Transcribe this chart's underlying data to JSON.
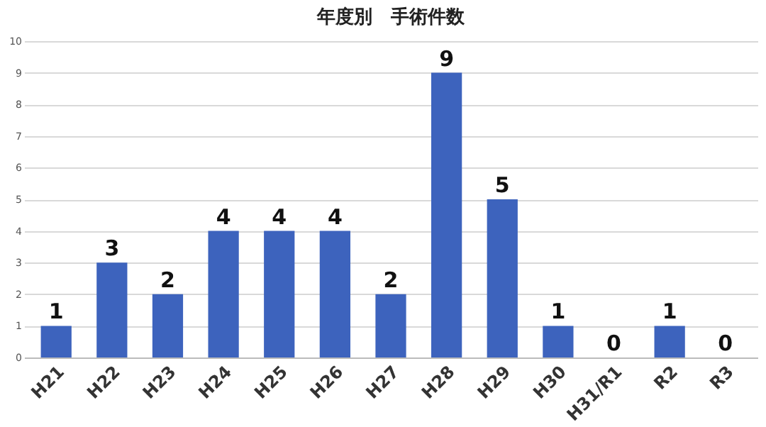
{
  "chart_data": {
    "type": "bar",
    "title": "年度別　手術件数",
    "categories": [
      "H21",
      "H22",
      "H23",
      "H24",
      "H25",
      "H26",
      "H27",
      "H28",
      "H29",
      "H30",
      "H31/R1",
      "R2",
      "R3"
    ],
    "values": [
      1,
      3,
      2,
      4,
      4,
      4,
      2,
      9,
      5,
      1,
      0,
      1,
      0
    ],
    "color": "#3d63bd",
    "ylim": [
      0,
      10
    ],
    "yticks": [
      0,
      1,
      2,
      3,
      4,
      5,
      6,
      7,
      8,
      9,
      10
    ],
    "grid": "y",
    "data_labels": true
  }
}
